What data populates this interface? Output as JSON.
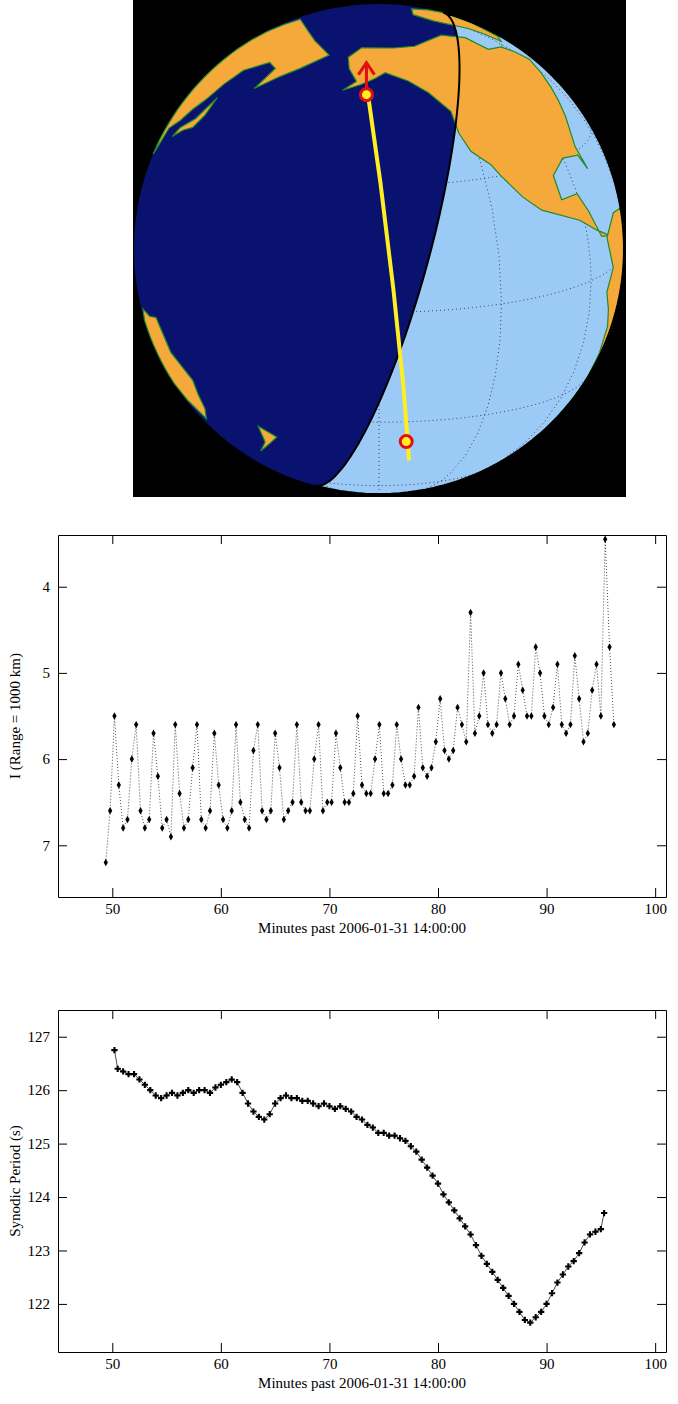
{
  "chart_data": [
    {
      "type": "scatter",
      "x_label": "Minutes past 2006-01-31 14:00:00",
      "y_label": "I (Range = 1000 km)",
      "xlim": [
        45,
        101
      ],
      "ylim": [
        7.6,
        3.4
      ],
      "xticks": [
        50,
        60,
        70,
        80,
        90,
        100
      ],
      "yticks": [
        4,
        5,
        6,
        7
      ],
      "marker": "diamond",
      "line_style": "dotted",
      "color": "#000000",
      "x": [
        49.4,
        49.8,
        50.2,
        50.6,
        51.0,
        51.4,
        51.8,
        52.2,
        52.6,
        53.0,
        53.4,
        53.8,
        54.2,
        54.6,
        55.0,
        55.4,
        55.8,
        56.2,
        56.6,
        57.0,
        57.4,
        57.8,
        58.2,
        58.6,
        59.0,
        59.4,
        59.8,
        60.2,
        60.6,
        61.0,
        61.4,
        61.8,
        62.2,
        62.6,
        63.0,
        63.4,
        63.8,
        64.2,
        64.6,
        65.0,
        65.4,
        65.8,
        66.2,
        66.6,
        67.0,
        67.4,
        67.8,
        68.2,
        68.6,
        69.0,
        69.4,
        69.8,
        70.2,
        70.6,
        71.0,
        71.4,
        71.8,
        72.2,
        72.6,
        73.0,
        73.4,
        73.8,
        74.2,
        74.6,
        75.0,
        75.4,
        75.8,
        76.2,
        76.6,
        77.0,
        77.4,
        77.8,
        78.2,
        78.6,
        79.0,
        79.4,
        79.8,
        80.2,
        80.6,
        81.0,
        81.4,
        81.8,
        82.2,
        82.6,
        83.0,
        83.4,
        83.8,
        84.2,
        84.6,
        85.0,
        85.4,
        85.8,
        86.2,
        86.6,
        87.0,
        87.4,
        87.8,
        88.2,
        88.6,
        89.0,
        89.4,
        89.8,
        90.2,
        90.6,
        91.0,
        91.4,
        91.8,
        92.2,
        92.6,
        93.0,
        93.4,
        93.8,
        94.2,
        94.6,
        95.0,
        95.4,
        95.8,
        96.2
      ],
      "values": [
        7.2,
        6.6,
        5.5,
        6.3,
        6.8,
        6.7,
        6.0,
        5.6,
        6.6,
        6.8,
        6.7,
        5.7,
        6.2,
        6.8,
        6.7,
        6.9,
        5.6,
        6.4,
        6.8,
        6.7,
        6.1,
        5.6,
        6.7,
        6.8,
        6.6,
        5.7,
        6.3,
        6.7,
        6.8,
        6.6,
        5.6,
        6.5,
        6.7,
        6.8,
        5.9,
        5.6,
        6.6,
        6.7,
        6.6,
        5.7,
        6.1,
        6.7,
        6.6,
        6.5,
        5.6,
        6.5,
        6.6,
        6.6,
        6.0,
        5.6,
        6.6,
        6.5,
        6.5,
        5.7,
        6.1,
        6.5,
        6.5,
        6.4,
        5.5,
        6.3,
        6.4,
        6.4,
        6.0,
        5.6,
        6.4,
        6.4,
        6.3,
        5.6,
        6.0,
        6.3,
        6.3,
        6.2,
        5.4,
        6.1,
        6.2,
        6.1,
        5.8,
        5.3,
        5.9,
        6.0,
        5.9,
        5.4,
        5.6,
        5.8,
        4.3,
        5.7,
        5.5,
        5.0,
        5.6,
        5.7,
        5.6,
        5.0,
        5.3,
        5.6,
        5.5,
        4.9,
        5.2,
        5.5,
        5.5,
        4.7,
        5.0,
        5.5,
        5.6,
        5.4,
        4.9,
        5.6,
        5.7,
        5.6,
        4.8,
        5.3,
        5.8,
        5.7,
        5.2,
        4.9,
        5.5,
        3.45,
        4.7,
        5.6
      ]
    },
    {
      "type": "scatter",
      "x_label": "Minutes past 2006-01-31 14:00:00",
      "y_label": "Synodic Period (s)",
      "xlim": [
        45,
        101
      ],
      "ylim": [
        121.1,
        127.5
      ],
      "xticks": [
        50,
        60,
        70,
        80,
        90,
        100
      ],
      "yticks": [
        122,
        123,
        124,
        125,
        126,
        127
      ],
      "marker": "plus",
      "line_style": "solid",
      "color": "#000000",
      "x": [
        50.2,
        50.5,
        51.0,
        51.5,
        52.0,
        52.5,
        53.0,
        53.5,
        54.0,
        54.5,
        55.0,
        55.5,
        56.0,
        56.5,
        57.0,
        57.5,
        58.0,
        58.5,
        59.0,
        59.5,
        60.0,
        60.5,
        61.0,
        61.5,
        62.0,
        62.5,
        63.0,
        63.5,
        64.0,
        64.5,
        65.0,
        65.5,
        66.0,
        66.5,
        67.0,
        67.5,
        68.0,
        68.5,
        69.0,
        69.5,
        70.0,
        70.5,
        71.0,
        71.5,
        72.0,
        72.5,
        73.0,
        73.5,
        74.0,
        74.5,
        75.0,
        75.5,
        76.0,
        76.5,
        77.0,
        77.5,
        78.0,
        78.5,
        79.0,
        79.5,
        80.0,
        80.5,
        81.0,
        81.5,
        82.0,
        82.5,
        83.0,
        83.5,
        84.0,
        84.5,
        85.0,
        85.5,
        86.0,
        86.5,
        87.0,
        87.5,
        88.0,
        88.5,
        89.0,
        89.5,
        90.0,
        90.5,
        91.0,
        91.5,
        92.0,
        92.5,
        93.0,
        93.5,
        94.0,
        94.5,
        95.0,
        95.3
      ],
      "values": [
        126.75,
        126.4,
        126.35,
        126.3,
        126.3,
        126.2,
        126.1,
        126.0,
        125.9,
        125.85,
        125.9,
        125.95,
        125.9,
        125.95,
        126.0,
        125.95,
        126.0,
        126.0,
        125.95,
        126.05,
        126.1,
        126.15,
        126.2,
        126.15,
        125.95,
        125.75,
        125.6,
        125.5,
        125.45,
        125.55,
        125.75,
        125.85,
        125.9,
        125.85,
        125.85,
        125.8,
        125.8,
        125.75,
        125.7,
        125.75,
        125.7,
        125.65,
        125.7,
        125.65,
        125.6,
        125.5,
        125.45,
        125.35,
        125.3,
        125.2,
        125.2,
        125.15,
        125.15,
        125.1,
        125.05,
        124.95,
        124.85,
        124.7,
        124.55,
        124.4,
        124.25,
        124.05,
        123.9,
        123.75,
        123.6,
        123.45,
        123.3,
        123.1,
        122.9,
        122.75,
        122.6,
        122.45,
        122.3,
        122.15,
        122.0,
        121.85,
        121.7,
        121.65,
        121.75,
        121.85,
        122.0,
        122.2,
        122.4,
        122.55,
        122.7,
        122.8,
        122.95,
        123.15,
        123.3,
        123.35,
        123.4,
        123.7
      ]
    }
  ]
}
